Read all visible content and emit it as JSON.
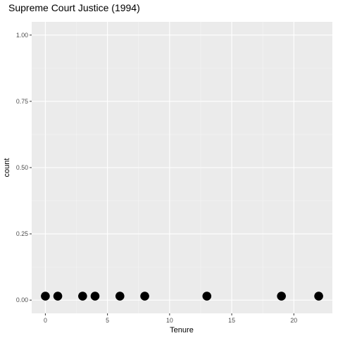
{
  "chart_data": {
    "type": "scatter",
    "title": "Supreme Court Justice (1994)",
    "xlabel": "Tenure",
    "ylabel": "count",
    "x": [
      0,
      1,
      3,
      4,
      6,
      8,
      13,
      19,
      22
    ],
    "y": [
      0.015,
      0.015,
      0.015,
      0.015,
      0.015,
      0.015,
      0.015,
      0.015,
      0.015
    ],
    "xlim": [
      -1.1,
      23.1
    ],
    "ylim": [
      -0.05,
      1.05
    ],
    "x_ticks": [
      0,
      5,
      10,
      15,
      20
    ],
    "x_tick_labels": [
      "0",
      "5",
      "10",
      "15",
      "20"
    ],
    "y_ticks": [
      0,
      0.25,
      0.5,
      0.75,
      1.0
    ],
    "y_tick_labels": [
      "0.00",
      "0.25",
      "0.50",
      "0.75",
      "1.00"
    ],
    "grid": true,
    "legend": "none",
    "colors": {
      "panel_background": "#ebebeb",
      "grid_major": "#ffffff",
      "grid_minor": "#f5f5f5",
      "point": "#000000",
      "tick": "#333333",
      "tick_label": "#4d4d4d"
    }
  }
}
